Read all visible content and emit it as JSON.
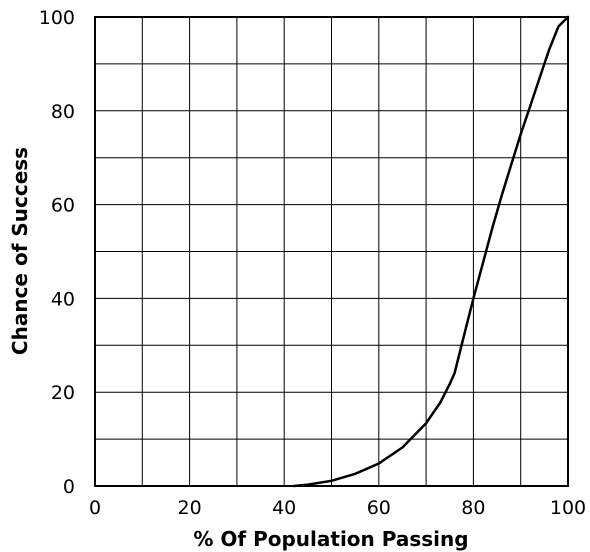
{
  "chart_data": {
    "type": "line",
    "title": "",
    "xlabel": "% Of Population Passing",
    "ylabel": "Chance of Success",
    "xlim": [
      0,
      100
    ],
    "ylim": [
      0,
      100
    ],
    "x_ticks": [
      0,
      20,
      40,
      60,
      80,
      100
    ],
    "y_ticks": [
      0,
      20,
      40,
      60,
      80,
      100
    ],
    "grid": true,
    "grid_step": 10,
    "line_color": "#000000",
    "series": [
      {
        "x": [
          42,
          45,
          50,
          55,
          60,
          65,
          70,
          73,
          75,
          76,
          78,
          80,
          82,
          84,
          86,
          88,
          90,
          92,
          94,
          96,
          98,
          100
        ],
        "y": [
          0,
          0.3,
          1.1,
          2.6,
          4.8,
          8.2,
          13.4,
          17.8,
          21.8,
          24,
          32,
          40,
          47.5,
          55,
          62,
          68.5,
          75,
          81,
          87,
          93,
          98,
          100
        ]
      }
    ]
  }
}
